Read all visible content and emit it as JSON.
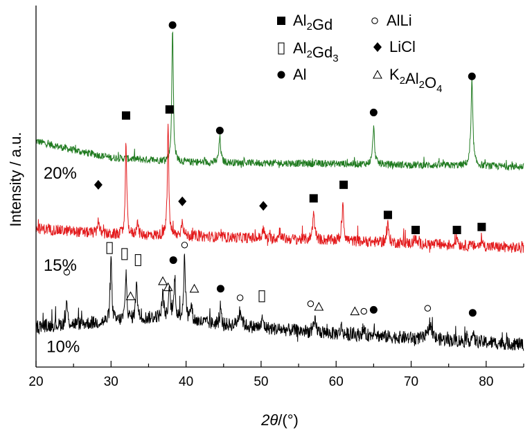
{
  "chart_data": {
    "type": "line",
    "xlabel_italic": "2θ",
    "xlabel_rest": "/(°)",
    "ylabel": "Intensity / a.u.",
    "xlim": [
      20,
      85
    ],
    "x_ticks": [
      "20",
      "30",
      "40",
      "50",
      "60",
      "70",
      "80"
    ],
    "y_ticks_shown": false,
    "grid": false,
    "legend_position": "top-right",
    "legend": [
      {
        "symbol": "square",
        "label": "Al",
        "sub": "2",
        "label2": "Gd",
        "sub2": "",
        "label3": ""
      },
      {
        "symbol": "circle-open",
        "label": "AlLi",
        "sub": "",
        "label2": "",
        "sub2": "",
        "label3": ""
      },
      {
        "symbol": "rect-open",
        "label": "Al",
        "sub": "2",
        "label2": "Gd",
        "sub2": "3",
        "label3": ""
      },
      {
        "symbol": "diamond",
        "label": "LiCl",
        "sub": "",
        "label2": "",
        "sub2": "",
        "label3": ""
      },
      {
        "symbol": "circle-filled",
        "label": "Al",
        "sub": "",
        "label2": "",
        "sub2": "",
        "label3": ""
      },
      {
        "symbol": "triangle-open",
        "label": "K",
        "sub": "2",
        "label2": "Al",
        "sub2": "2",
        "label3": "O",
        "sub3": "4"
      }
    ],
    "series": [
      {
        "name": "20%",
        "color": "#1f7a1f",
        "baseline": 0.62,
        "noise": 0.012,
        "background": [
          [
            20,
            0.7
          ],
          [
            25,
            0.67
          ],
          [
            30,
            0.645
          ],
          [
            40,
            0.63
          ],
          [
            60,
            0.625
          ],
          [
            85,
            0.615
          ]
        ],
        "peaks": [
          {
            "x": 38.2,
            "h": 0.44,
            "w": 0.12
          },
          {
            "x": 44.5,
            "h": 0.085,
            "w": 0.14
          },
          {
            "x": 65.0,
            "h": 0.12,
            "w": 0.15
          },
          {
            "x": 78.1,
            "h": 0.27,
            "w": 0.15
          }
        ],
        "markers": [
          {
            "x": 38.2,
            "y": 1.085,
            "symbol": "circle-filled"
          },
          {
            "x": 44.5,
            "y": 0.735,
            "symbol": "circle-filled"
          },
          {
            "x": 65.0,
            "y": 0.795,
            "symbol": "circle-filled"
          },
          {
            "x": 78.1,
            "y": 0.915,
            "symbol": "circle-filled"
          }
        ]
      },
      {
        "name": "15%",
        "color": "#e31a1c",
        "baseline": 0.36,
        "noise": 0.018,
        "background": [
          [
            20,
            0.41
          ],
          [
            25,
            0.4
          ],
          [
            30,
            0.39
          ],
          [
            40,
            0.385
          ],
          [
            60,
            0.37
          ],
          [
            85,
            0.345
          ]
        ],
        "peaks": [
          {
            "x": 28.3,
            "h": 0.05,
            "w": 0.12
          },
          {
            "x": 32.0,
            "h": 0.31,
            "w": 0.11
          },
          {
            "x": 33.5,
            "h": 0.05,
            "w": 0.12
          },
          {
            "x": 37.6,
            "h": 0.375,
            "w": 0.11
          },
          {
            "x": 39.5,
            "h": 0.06,
            "w": 0.13
          },
          {
            "x": 50.3,
            "h": 0.035,
            "w": 0.12
          },
          {
            "x": 52.5,
            "h": 0.03,
            "w": 0.12
          },
          {
            "x": 57.0,
            "h": 0.09,
            "w": 0.16
          },
          {
            "x": 60.9,
            "h": 0.13,
            "w": 0.13
          },
          {
            "x": 66.9,
            "h": 0.06,
            "w": 0.15
          },
          {
            "x": 70.5,
            "h": 0.02,
            "w": 0.15
          },
          {
            "x": 76.1,
            "h": 0.03,
            "w": 0.15
          },
          {
            "x": 79.4,
            "h": 0.02,
            "w": 0.15
          }
        ],
        "markers": [
          {
            "x": 28.3,
            "y": 0.555,
            "symbol": "diamond"
          },
          {
            "x": 32.0,
            "y": 0.785,
            "symbol": "square"
          },
          {
            "x": 37.8,
            "y": 0.805,
            "symbol": "square"
          },
          {
            "x": 39.5,
            "y": 0.5,
            "symbol": "diamond"
          },
          {
            "x": 50.3,
            "y": 0.485,
            "symbol": "diamond"
          },
          {
            "x": 57.0,
            "y": 0.51,
            "symbol": "square"
          },
          {
            "x": 61.0,
            "y": 0.555,
            "symbol": "square"
          },
          {
            "x": 66.9,
            "y": 0.455,
            "symbol": "square"
          },
          {
            "x": 70.6,
            "y": 0.405,
            "symbol": "square"
          },
          {
            "x": 76.1,
            "y": 0.405,
            "symbol": "square"
          },
          {
            "x": 79.4,
            "y": 0.415,
            "symbol": "square"
          }
        ]
      },
      {
        "name": "10%",
        "color": "#000000",
        "baseline": 0.08,
        "noise": 0.022,
        "background": [
          [
            20,
            0.085
          ],
          [
            30,
            0.1
          ],
          [
            36,
            0.115
          ],
          [
            45,
            0.09
          ],
          [
            60,
            0.06
          ],
          [
            85,
            0.025
          ]
        ],
        "peaks": [
          {
            "x": 24.1,
            "h": 0.075,
            "w": 0.12
          },
          {
            "x": 30.0,
            "h": 0.21,
            "w": 0.12
          },
          {
            "x": 32.0,
            "h": 0.16,
            "w": 0.12
          },
          {
            "x": 33.4,
            "h": 0.14,
            "w": 0.12
          },
          {
            "x": 36.9,
            "h": 0.08,
            "w": 0.14
          },
          {
            "x": 37.8,
            "h": 0.1,
            "w": 0.13
          },
          {
            "x": 38.5,
            "h": 0.14,
            "w": 0.12
          },
          {
            "x": 39.8,
            "h": 0.21,
            "w": 0.14
          },
          {
            "x": 40.7,
            "h": 0.05,
            "w": 0.14
          },
          {
            "x": 44.6,
            "h": 0.05,
            "w": 0.12
          },
          {
            "x": 47.2,
            "h": 0.055,
            "w": 0.25
          },
          {
            "x": 50.2,
            "h": 0.03,
            "w": 0.14
          },
          {
            "x": 57.2,
            "h": 0.035,
            "w": 0.18
          },
          {
            "x": 60.7,
            "h": 0.025,
            "w": 0.14
          },
          {
            "x": 63.6,
            "h": 0.02,
            "w": 0.16
          },
          {
            "x": 65.1,
            "h": 0.03,
            "w": 0.14
          },
          {
            "x": 72.5,
            "h": 0.055,
            "w": 0.25
          },
          {
            "x": 78.2,
            "h": 0.025,
            "w": 0.16
          }
        ],
        "markers": [
          {
            "x": 24.1,
            "y": 0.265,
            "symbol": "circle-open"
          },
          {
            "x": 29.8,
            "y": 0.345,
            "symbol": "rect-open"
          },
          {
            "x": 31.8,
            "y": 0.325,
            "symbol": "rect-open"
          },
          {
            "x": 32.6,
            "y": 0.185,
            "symbol": "triangle-open"
          },
          {
            "x": 33.6,
            "y": 0.305,
            "symbol": "rect-open"
          },
          {
            "x": 36.9,
            "y": 0.235,
            "symbol": "triangle-open"
          },
          {
            "x": 37.6,
            "y": 0.215,
            "symbol": "triangle-open"
          },
          {
            "x": 38.3,
            "y": 0.305,
            "symbol": "circle-filled"
          },
          {
            "x": 39.8,
            "y": 0.355,
            "symbol": "circle-open"
          },
          {
            "x": 41.1,
            "y": 0.21,
            "symbol": "triangle-open"
          },
          {
            "x": 44.6,
            "y": 0.21,
            "symbol": "circle-filled"
          },
          {
            "x": 47.2,
            "y": 0.18,
            "symbol": "circle-open"
          },
          {
            "x": 50.1,
            "y": 0.185,
            "symbol": "rect-open"
          },
          {
            "x": 56.6,
            "y": 0.16,
            "symbol": "circle-open"
          },
          {
            "x": 57.7,
            "y": 0.15,
            "symbol": "triangle-open"
          },
          {
            "x": 62.5,
            "y": 0.135,
            "symbol": "triangle-open"
          },
          {
            "x": 63.7,
            "y": 0.135,
            "symbol": "circle-open"
          },
          {
            "x": 65.0,
            "y": 0.14,
            "symbol": "circle-filled"
          },
          {
            "x": 72.2,
            "y": 0.145,
            "symbol": "circle-open"
          },
          {
            "x": 78.2,
            "y": 0.13,
            "symbol": "circle-filled"
          }
        ]
      }
    ],
    "series_labels": [
      {
        "text": "20%",
        "x": 21.0,
        "y": 0.575
      },
      {
        "text": "15%",
        "x": 21.0,
        "y": 0.27
      },
      {
        "text": "10%",
        "x": 21.4,
        "y": 0.0
      }
    ]
  }
}
